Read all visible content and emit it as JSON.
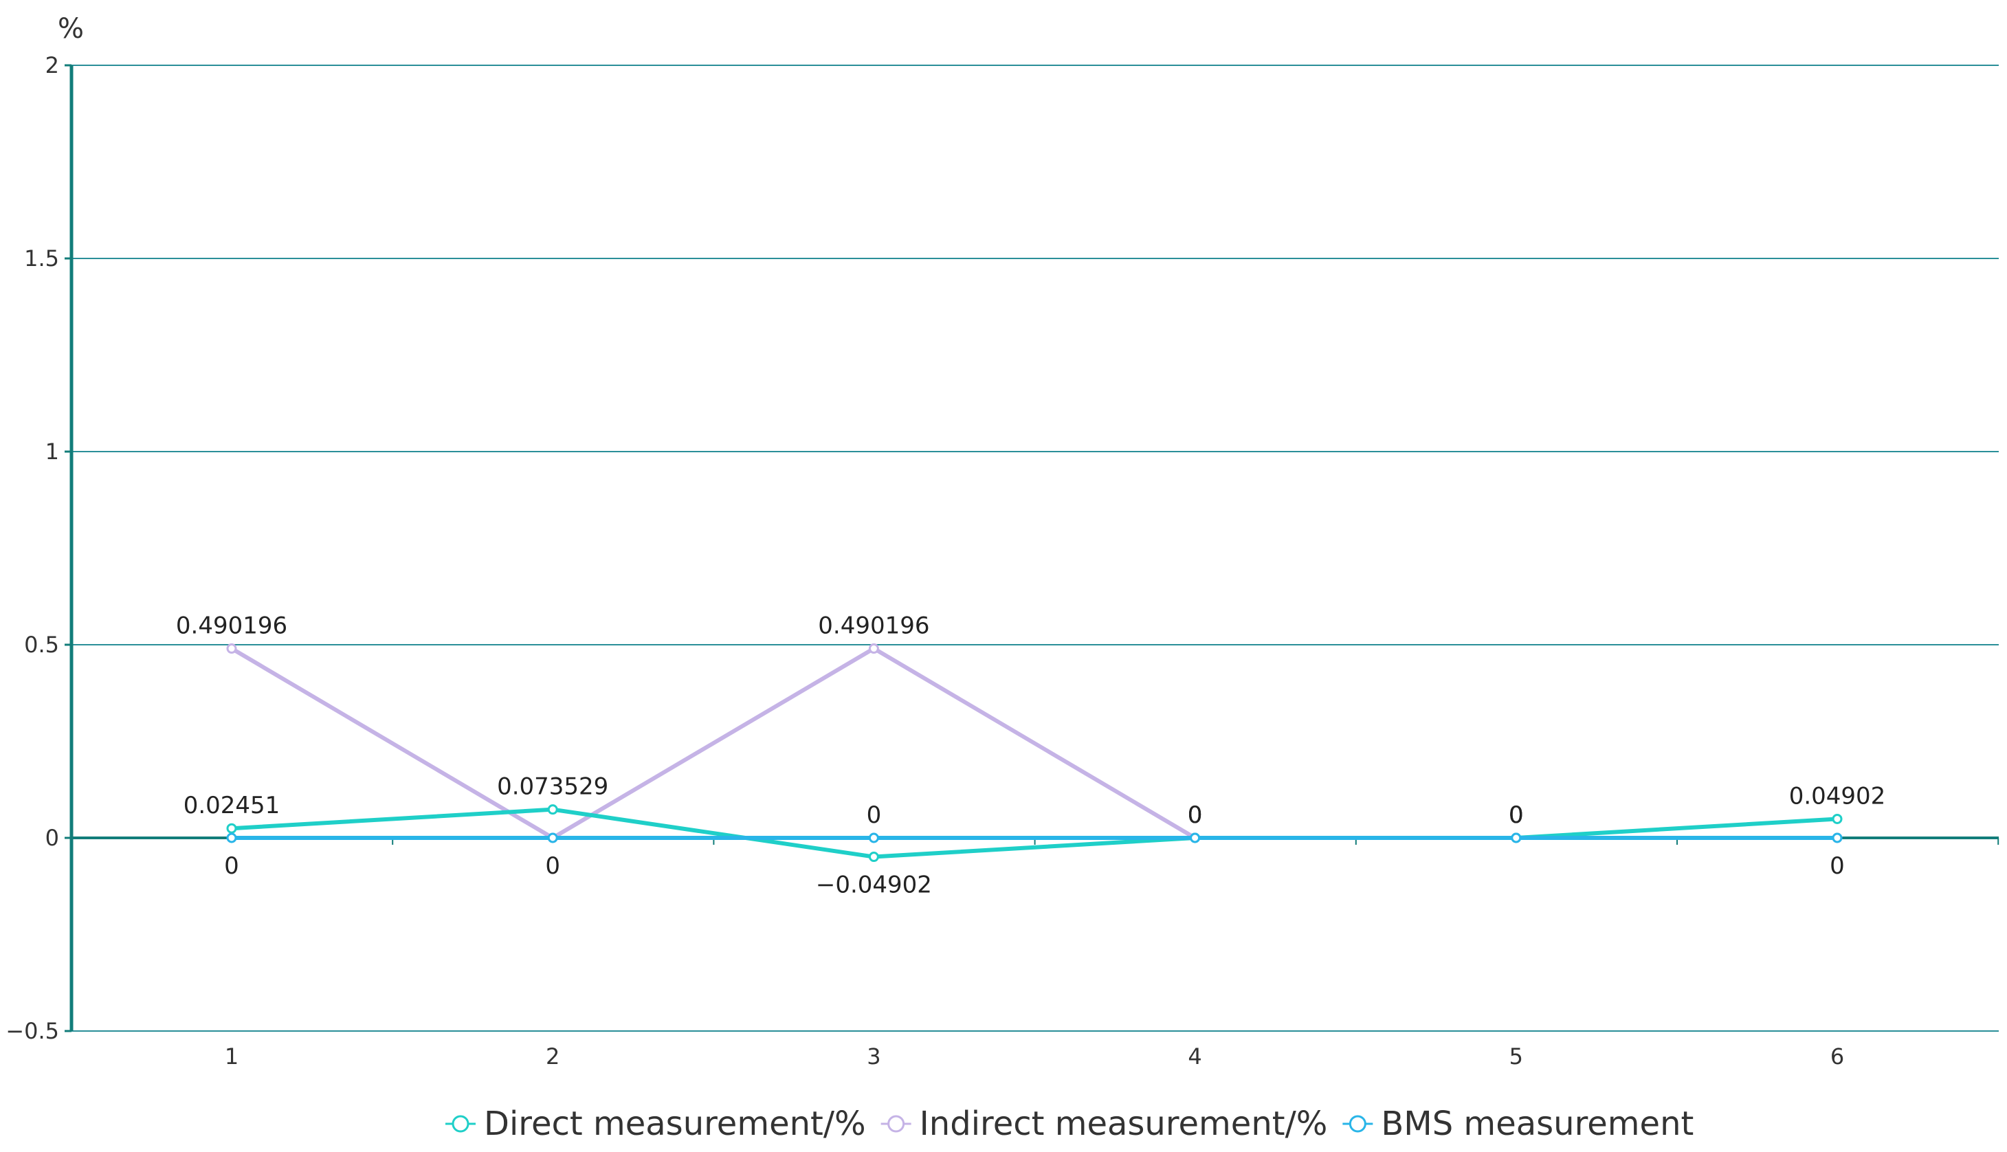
{
  "chart_data": {
    "type": "line",
    "title": "",
    "xlabel": "",
    "ylabel": "",
    "y_unit": "%",
    "categories": [
      "1",
      "2",
      "3",
      "4",
      "5",
      "6"
    ],
    "ylim": [
      -0.5,
      2
    ],
    "yticks": [
      -0.5,
      0,
      0.5,
      1,
      1.5,
      2
    ],
    "ytick_labels": [
      "−0.5",
      "0",
      "0.5",
      "1",
      "1.5",
      "2"
    ],
    "grid": true,
    "legend_position": "bottom-center",
    "series": [
      {
        "name": "Direct measurement/%",
        "color": "#1fcfc8",
        "values": [
          0.02451,
          0.073529,
          -0.04902,
          0,
          0,
          0.04902
        ],
        "labels": [
          "0.02451",
          "0.073529",
          "−0.04902",
          "0",
          "0",
          "0.04902"
        ],
        "label_side": [
          "above",
          "above",
          "below",
          "above",
          "above",
          "above"
        ]
      },
      {
        "name": "Indirect measurement/%",
        "color": "#c5b3e6",
        "values": [
          0.490196,
          0,
          0.490196,
          0,
          0,
          0
        ],
        "labels": [
          "0.490196",
          "0",
          "0.490196",
          "0",
          "0",
          "0"
        ],
        "label_side": [
          "above",
          "below",
          "above",
          "above",
          "above",
          "below"
        ]
      },
      {
        "name": "BMS measurement",
        "color": "#29b5e8",
        "values": [
          0,
          0,
          0,
          0,
          0,
          0
        ],
        "labels": [
          "0",
          "",
          "0",
          "0",
          "0",
          ""
        ],
        "label_side": [
          "below",
          "below",
          "above",
          "above",
          "above",
          "below"
        ]
      }
    ]
  },
  "colors": {
    "axis": "#127d7a",
    "grid": "#2a8f99",
    "tick_text": "#333333"
  }
}
